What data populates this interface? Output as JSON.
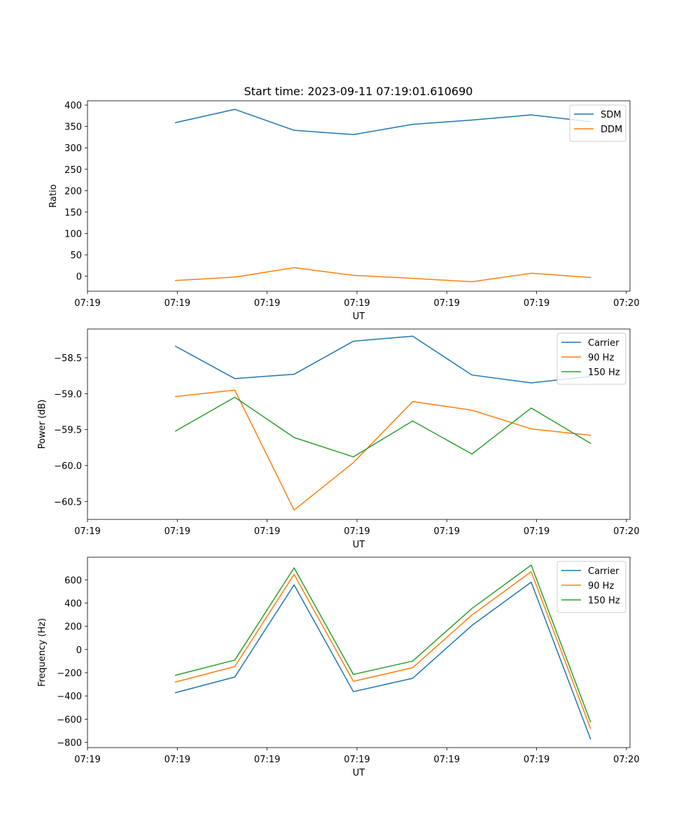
{
  "figure": {
    "title": "Start time: 2023-09-11 07:19:01.610690"
  },
  "colors": {
    "blue": "#1f77b4",
    "orange": "#ff7f0e",
    "green": "#2ca02c"
  },
  "chart_data": [
    {
      "type": "line",
      "ylabel": "Ratio",
      "xlabel": "UT",
      "x": [
        0.49,
        0.82,
        1.15,
        1.48,
        1.81,
        2.14,
        2.47,
        2.8
      ],
      "xlim": [
        0,
        3.02
      ],
      "xticks": [
        0,
        0.5,
        1,
        1.5,
        2,
        2.5,
        3
      ],
      "xticklabels": [
        "07:19",
        "07:19",
        "07:19",
        "07:19",
        "07:19",
        "07:19",
        "07:20"
      ],
      "ylim": [
        -35,
        410
      ],
      "yticks": [
        0,
        50,
        100,
        150,
        200,
        250,
        300,
        350,
        400
      ],
      "yticklabels": [
        "0",
        "50",
        "100",
        "150",
        "200",
        "250",
        "300",
        "350",
        "400"
      ],
      "legend": "top-right",
      "series": [
        {
          "name": "SDM",
          "color": "#1f77b4",
          "values": [
            359,
            390,
            341,
            331,
            355,
            365,
            377,
            361
          ]
        },
        {
          "name": "DDM",
          "color": "#ff7f0e",
          "values": [
            -10,
            -2,
            20,
            2,
            -5,
            -13,
            7,
            -3
          ]
        }
      ]
    },
    {
      "type": "line",
      "ylabel": "Power (dB)",
      "xlabel": "UT",
      "x": [
        0.49,
        0.82,
        1.15,
        1.48,
        1.81,
        2.14,
        2.47,
        2.8
      ],
      "xlim": [
        0,
        3.02
      ],
      "xticks": [
        0,
        0.5,
        1,
        1.5,
        2,
        2.5,
        3
      ],
      "xticklabels": [
        "07:19",
        "07:19",
        "07:19",
        "07:19",
        "07:19",
        "07:19",
        "07:20"
      ],
      "ylim": [
        -60.75,
        -58.1
      ],
      "yticks": [
        -60.5,
        -60.0,
        -59.5,
        -59.0,
        -58.5
      ],
      "yticklabels": [
        "−60.5",
        "−60.0",
        "−59.5",
        "−59.0",
        "−58.5"
      ],
      "legend": "top-right",
      "series": [
        {
          "name": "Carrier",
          "color": "#1f77b4",
          "values": [
            -58.34,
            -58.79,
            -58.73,
            -58.27,
            -58.2,
            -58.74,
            -58.85,
            -58.76
          ]
        },
        {
          "name": "90 Hz",
          "color": "#ff7f0e",
          "values": [
            -59.04,
            -58.95,
            -60.62,
            -59.96,
            -59.11,
            -59.23,
            -59.49,
            -59.58
          ]
        },
        {
          "name": "150 Hz",
          "color": "#2ca02c",
          "values": [
            -59.52,
            -59.05,
            -59.61,
            -59.88,
            -59.38,
            -59.84,
            -59.2,
            -59.69
          ]
        }
      ]
    },
    {
      "type": "line",
      "ylabel": "Frequency (Hz)",
      "xlabel": "UT",
      "x": [
        0.49,
        0.82,
        1.15,
        1.48,
        1.81,
        2.14,
        2.47,
        2.8
      ],
      "xlim": [
        0,
        3.02
      ],
      "xticks": [
        0,
        0.5,
        1,
        1.5,
        2,
        2.5,
        3
      ],
      "xticklabels": [
        "07:19",
        "07:19",
        "07:19",
        "07:19",
        "07:19",
        "07:19",
        "07:20"
      ],
      "ylim": [
        -845,
        795
      ],
      "yticks": [
        -800,
        -600,
        -400,
        -200,
        0,
        200,
        400,
        600
      ],
      "yticklabels": [
        "−800",
        "−600",
        "−400",
        "−200",
        "0",
        "200",
        "400",
        "600"
      ],
      "legend": "top-right",
      "series": [
        {
          "name": "Carrier",
          "color": "#1f77b4",
          "values": [
            -372,
            -237,
            557,
            -363,
            -248,
            207,
            580,
            -770
          ]
        },
        {
          "name": "90 Hz",
          "color": "#ff7f0e",
          "values": [
            -280,
            -147,
            647,
            -274,
            -157,
            297,
            670,
            -680
          ]
        },
        {
          "name": "150 Hz",
          "color": "#2ca02c",
          "values": [
            -222,
            -91,
            703,
            -215,
            -100,
            353,
            727,
            -623
          ]
        }
      ]
    }
  ]
}
